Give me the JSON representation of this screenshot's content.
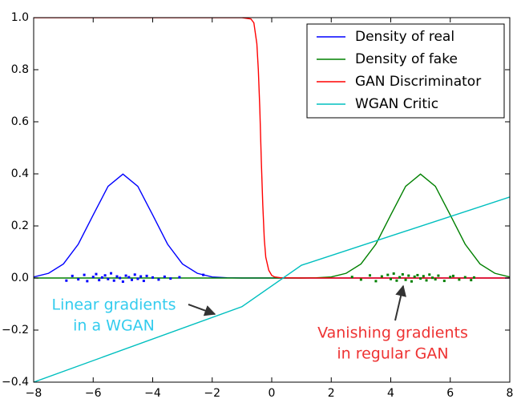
{
  "chart_data": {
    "type": "line",
    "xlim": [
      -8,
      8
    ],
    "ylim": [
      -0.4,
      1.0
    ],
    "xticks": [
      {
        "value": -8,
        "label": "−8"
      },
      {
        "value": -6,
        "label": "−6"
      },
      {
        "value": -4,
        "label": "−4"
      },
      {
        "value": -2,
        "label": "−2"
      },
      0,
      2,
      4,
      6,
      8
    ],
    "yticks": [
      {
        "value": -0.4,
        "label": "−0.4"
      },
      {
        "value": -0.2,
        "label": "−0.2"
      },
      {
        "value": 0,
        "label": "0.0"
      },
      0.2,
      0.4,
      0.6,
      0.8,
      {
        "value": 1,
        "label": "1.0"
      }
    ],
    "legend": "upper right",
    "series": [
      {
        "name": "Density of real",
        "color": "#0000ff",
        "x": [
          -8,
          -7.5,
          -7,
          -6.5,
          -6,
          -5.5,
          -5,
          -4.5,
          -4,
          -3.5,
          -3,
          -2.5,
          -2,
          -1.5,
          -1,
          -0.5,
          0,
          0.5,
          1,
          1.5,
          2,
          2.5,
          3,
          3.5,
          4,
          4.5,
          5,
          5.5,
          6,
          6.5,
          7,
          7.5,
          8
        ],
        "values": [
          0.004,
          0.018,
          0.054,
          0.13,
          0.242,
          0.352,
          0.399,
          0.352,
          0.242,
          0.13,
          0.054,
          0.018,
          0.004,
          0.001,
          0,
          0,
          0,
          0,
          0,
          0,
          0,
          0,
          0,
          0,
          0,
          0,
          0,
          0,
          0,
          0,
          0,
          0,
          0
        ]
      },
      {
        "name": "Density of fake",
        "color": "#008000",
        "x": [
          -8,
          -7.5,
          -7,
          -6.5,
          -6,
          -5.5,
          -5,
          -4.5,
          -4,
          -3.5,
          -3,
          -2.5,
          -2,
          -1.5,
          -1,
          -0.5,
          0,
          0.5,
          1,
          1.5,
          2,
          2.5,
          3,
          3.5,
          4,
          4.5,
          5,
          5.5,
          6,
          6.5,
          7,
          7.5,
          8
        ],
        "values": [
          0,
          0,
          0,
          0,
          0,
          0,
          0,
          0,
          0,
          0,
          0,
          0,
          0,
          0,
          0,
          0,
          0,
          0,
          0,
          0.001,
          0.004,
          0.018,
          0.054,
          0.13,
          0.242,
          0.352,
          0.399,
          0.352,
          0.242,
          0.13,
          0.054,
          0.018,
          0.004
        ]
      },
      {
        "name": "GAN Discriminator",
        "color": "#ff0000",
        "x": [
          -8,
          -1,
          -0.7,
          -0.6,
          -0.5,
          -0.45,
          -0.4,
          -0.35,
          -0.3,
          -0.25,
          -0.2,
          -0.1,
          0,
          0.1,
          0.3,
          1,
          8
        ],
        "values": [
          1,
          1,
          0.995,
          0.98,
          0.9,
          0.8,
          0.65,
          0.45,
          0.28,
          0.15,
          0.08,
          0.03,
          0.01,
          0.004,
          0.001,
          0,
          0
        ]
      },
      {
        "name": "WGAN Critic",
        "color": "#00bfbf",
        "x": [
          -8,
          -1,
          1,
          8
        ],
        "values": [
          -0.4,
          -0.11,
          0.049,
          0.311
        ]
      }
    ],
    "points": [
      {
        "color": "#0000ff",
        "x": [
          -6.9,
          -6.7,
          -6.5,
          -6.3,
          -6.2,
          -6.0,
          -5.9,
          -5.8,
          -5.7,
          -5.6,
          -5.5,
          -5.4,
          -5.3,
          -5.2,
          -5.1,
          -5.0,
          -4.9,
          -4.8,
          -4.7,
          -4.6,
          -4.5,
          -4.4,
          -4.3,
          -4.2,
          -4.0,
          -3.8,
          -3.6,
          -3.4,
          -3.1,
          -2.3
        ],
        "values": [
          -0.01,
          0.008,
          -0.005,
          0.012,
          -0.012,
          0.004,
          0.015,
          -0.008,
          0.002,
          0.01,
          -0.004,
          0.018,
          -0.01,
          0.006,
          0.0,
          -0.014,
          0.009,
          0.003,
          -0.007,
          0.013,
          -0.003,
          0.006,
          -0.011,
          0.008,
          0.002,
          -0.006,
          0.005,
          -0.002,
          0.003,
          0.012
        ]
      },
      {
        "color": "#008000",
        "x": [
          2.7,
          3.0,
          3.3,
          3.5,
          3.7,
          3.9,
          4.0,
          4.1,
          4.2,
          4.3,
          4.4,
          4.5,
          4.6,
          4.7,
          4.8,
          4.9,
          5.0,
          5.1,
          5.2,
          5.3,
          5.4,
          5.5,
          5.6,
          5.8,
          6.0,
          6.1,
          6.3,
          6.5,
          6.7,
          6.8
        ],
        "values": [
          0.004,
          -0.006,
          0.01,
          -0.012,
          0.006,
          0.012,
          -0.004,
          0.017,
          -0.01,
          0.003,
          0.014,
          -0.007,
          0.009,
          -0.013,
          0.005,
          0.011,
          -0.002,
          0.007,
          -0.009,
          0.013,
          0.001,
          -0.005,
          0.009,
          -0.011,
          0.004,
          0.008,
          -0.006,
          0.003,
          -0.008,
          0.002
        ]
      }
    ],
    "annotations": [
      {
        "lines": [
          "Linear gradients",
          "in a WGAN"
        ],
        "color": "#33ccee"
      },
      {
        "lines": [
          "Vanishing gradients",
          "in regular GAN"
        ],
        "color": "#ee3333"
      }
    ]
  }
}
